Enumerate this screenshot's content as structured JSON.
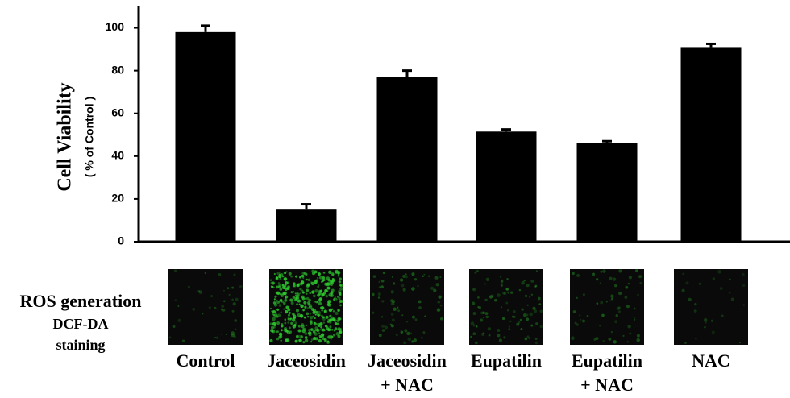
{
  "chart_data": {
    "type": "bar",
    "y_label": "Cell Viability",
    "y_sublabel": "( % of Control )",
    "categories": [
      "Control",
      "Jaceosidin",
      [
        "Jaceosidin",
        "+ NAC"
      ],
      "Eupatilin",
      [
        "Eupatilin",
        "+ NAC"
      ],
      "NAC"
    ],
    "values": [
      98,
      15,
      77,
      51.5,
      46,
      91
    ],
    "errors": [
      3,
      2.5,
      3,
      1,
      1,
      1.5
    ],
    "color": "#000000",
    "ylim": [
      0,
      110
    ],
    "yticks": [
      0,
      20,
      40,
      60,
      80,
      100
    ],
    "row_label": "ROS generation",
    "row_sublabel": [
      "DCF-DA",
      "staining"
    ]
  }
}
